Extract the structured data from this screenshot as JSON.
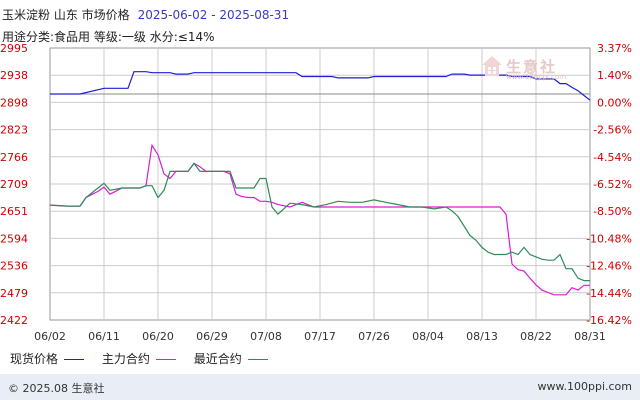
{
  "header": {
    "title": "玉米淀粉 山东 市场价格",
    "date_range": "2025-06-02 - 2025-08-31",
    "subtitle": "用途分类:食品用 等级:一级 水分:≤14%"
  },
  "watermark": {
    "text": "生意社",
    "url": "www.100ppi.com"
  },
  "footer": {
    "copyright": "© 2025.08 生意社",
    "site": "www.100ppi.com"
  },
  "colors": {
    "spot": "#1d1dd6",
    "main": "#d61ed6",
    "recent": "#2e8b57",
    "left_axis": "#d00000",
    "right_axis": "#d00000",
    "grid": "#cccccc"
  },
  "chart_data": {
    "type": "line",
    "x_ticks": [
      "06/02",
      "06/11",
      "06/20",
      "06/29",
      "07/08",
      "07/17",
      "07/26",
      "08/04",
      "08/13",
      "08/22",
      "08/31"
    ],
    "y_left_ticks": [
      "2995",
      "2938",
      "2898",
      "2823",
      "2766",
      "2709",
      "2651",
      "2594",
      "2536",
      "2479",
      "2422"
    ],
    "y_right_ticks": [
      "3.37%",
      "1.40%",
      "0.00%",
      "-2.56%",
      "-4.54%",
      "-6.52%",
      "-8.50%",
      "-10.48%",
      "-12.46%",
      "-14.44%",
      "-16.42%"
    ],
    "ylim": [
      2422,
      2995
    ],
    "baseline": 2898,
    "series": [
      {
        "name": "现货价格",
        "color": "#1d1dd6",
        "x": [
          0,
          5,
          9,
          10,
          11,
          12,
          13,
          14,
          15,
          16,
          17,
          18,
          19,
          20,
          21,
          22,
          23,
          24,
          25,
          26,
          27,
          28,
          29,
          30,
          31,
          32,
          33,
          34,
          35,
          36,
          37,
          38,
          39,
          40,
          41,
          42,
          43,
          44,
          45,
          46,
          47,
          48,
          49,
          50,
          51,
          52,
          53,
          54,
          55,
          56,
          57,
          58,
          59,
          60,
          61,
          62,
          63,
          64,
          65,
          66,
          67,
          68,
          69,
          70,
          71,
          72,
          73,
          74,
          75,
          76,
          77,
          78,
          79,
          80,
          81,
          82,
          83,
          84,
          85,
          86,
          87,
          88,
          89,
          90
        ],
        "values": [
          2898,
          2898,
          2910,
          2910,
          2910,
          2910,
          2910,
          2945,
          2945,
          2945,
          2943,
          2943,
          2943,
          2943,
          2940,
          2940,
          2940,
          2943,
          2943,
          2943,
          2943,
          2943,
          2943,
          2943,
          2943,
          2943,
          2943,
          2943,
          2943,
          2943,
          2943,
          2943,
          2943,
          2943,
          2943,
          2935,
          2935,
          2935,
          2935,
          2935,
          2935,
          2932,
          2932,
          2932,
          2932,
          2932,
          2932,
          2935,
          2935,
          2935,
          2935,
          2935,
          2935,
          2935,
          2935,
          2935,
          2935,
          2935,
          2935,
          2935,
          2940,
          2940,
          2940,
          2938,
          2938,
          2938,
          2938,
          2938,
          2938,
          2938,
          2935,
          2935,
          2935,
          2935,
          2930,
          2930,
          2930,
          2930,
          2920,
          2920,
          2912,
          2905,
          2895,
          2885
        ]
      },
      {
        "name": "主力合约",
        "color": "#d61ed6",
        "x": [
          0,
          3,
          5,
          6,
          8,
          9,
          10,
          12,
          14,
          15,
          16,
          17,
          18,
          19,
          20,
          21,
          22,
          23,
          24,
          25,
          26,
          27,
          28,
          29,
          30,
          31,
          32,
          33,
          34,
          35,
          36,
          37,
          38,
          40,
          42,
          44,
          46,
          48,
          50,
          52,
          54,
          56,
          58,
          60,
          62,
          64,
          66,
          67,
          68,
          69,
          70,
          71,
          72,
          73,
          74,
          75,
          76,
          77,
          78,
          79,
          80,
          81,
          82,
          83,
          84,
          85,
          86,
          87,
          88,
          89,
          90
        ],
        "values": [
          2664,
          2662,
          2662,
          2680,
          2693,
          2702,
          2687,
          2700,
          2700,
          2700,
          2705,
          2790,
          2770,
          2730,
          2720,
          2735,
          2735,
          2735,
          2752,
          2745,
          2735,
          2735,
          2735,
          2735,
          2730,
          2687,
          2682,
          2680,
          2680,
          2672,
          2672,
          2670,
          2665,
          2660,
          2670,
          2660,
          2660,
          2660,
          2660,
          2660,
          2660,
          2660,
          2660,
          2660,
          2660,
          2660,
          2660,
          2660,
          2660,
          2660,
          2660,
          2660,
          2660,
          2660,
          2660,
          2660,
          2645,
          2540,
          2528,
          2525,
          2510,
          2496,
          2485,
          2480,
          2475,
          2475,
          2475,
          2490,
          2485,
          2495,
          2495
        ]
      },
      {
        "name": "最近合约",
        "color": "#2e8b57",
        "x": [
          0,
          3,
          5,
          6,
          8,
          9,
          10,
          12,
          14,
          15,
          16,
          17,
          18,
          19,
          20,
          21,
          22,
          23,
          24,
          25,
          26,
          27,
          28,
          29,
          30,
          31,
          32,
          33,
          34,
          35,
          36,
          37,
          38,
          40,
          42,
          44,
          46,
          48,
          50,
          52,
          54,
          56,
          58,
          60,
          62,
          64,
          66,
          67,
          68,
          69,
          70,
          71,
          72,
          73,
          74,
          75,
          76,
          77,
          78,
          79,
          80,
          81,
          82,
          83,
          84,
          85,
          86,
          87,
          88,
          89,
          90
        ],
        "values": [
          2664,
          2662,
          2662,
          2680,
          2700,
          2710,
          2695,
          2700,
          2700,
          2700,
          2705,
          2705,
          2680,
          2695,
          2735,
          2735,
          2735,
          2735,
          2752,
          2735,
          2735,
          2735,
          2735,
          2735,
          2735,
          2700,
          2700,
          2700,
          2700,
          2720,
          2720,
          2660,
          2645,
          2668,
          2665,
          2660,
          2665,
          2672,
          2670,
          2670,
          2675,
          2670,
          2665,
          2660,
          2660,
          2656,
          2660,
          2652,
          2640,
          2620,
          2600,
          2590,
          2575,
          2565,
          2560,
          2560,
          2560,
          2565,
          2560,
          2575,
          2560,
          2555,
          2550,
          2548,
          2548,
          2560,
          2530,
          2530,
          2510,
          2505,
          2505
        ]
      }
    ]
  },
  "legend": {
    "spot": "现货价格",
    "main": "主力合约",
    "recent": "最近合约"
  }
}
